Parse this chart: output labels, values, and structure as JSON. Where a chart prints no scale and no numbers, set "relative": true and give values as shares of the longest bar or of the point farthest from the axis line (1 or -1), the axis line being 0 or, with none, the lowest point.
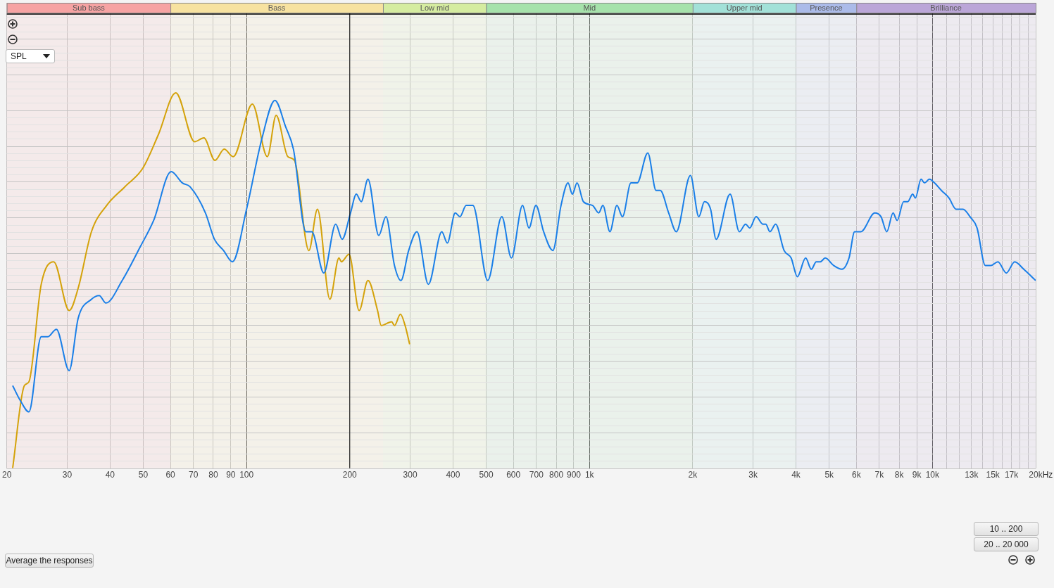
{
  "chart_data": {
    "type": "line",
    "relative": true,
    "log": "x",
    "grid": true,
    "legend": false,
    "marker": "none",
    "line_style": "solid",
    "xlim": [
      20,
      20000
    ],
    "xticks": [
      20,
      30,
      40,
      50,
      60,
      70,
      80,
      90,
      100,
      200,
      300,
      400,
      500,
      600,
      700,
      800,
      900,
      {
        "value": 1000,
        "label": "1k"
      },
      {
        "value": 2000,
        "label": "2k"
      },
      {
        "value": 3000,
        "label": "3k"
      },
      {
        "value": 4000,
        "label": "4k"
      },
      {
        "value": 5000,
        "label": "5k"
      },
      {
        "value": 6000,
        "label": "6k"
      },
      {
        "value": 7000,
        "label": "7k"
      },
      {
        "value": 8000,
        "label": "8k"
      },
      {
        "value": 9000,
        "label": "9k"
      },
      {
        "value": 10000,
        "label": "10k"
      },
      {
        "value": 11000,
        "label": null
      },
      {
        "value": 12000,
        "label": null
      },
      {
        "value": 13000,
        "label": "13k"
      },
      {
        "value": 14000,
        "label": null
      },
      {
        "value": 15000,
        "label": "15k"
      },
      {
        "value": 16000,
        "label": null
      },
      {
        "value": 17000,
        "label": "17k"
      },
      {
        "value": 18000,
        "label": null
      },
      {
        "value": 19000,
        "label": null
      },
      {
        "value": 20000,
        "label": "20k"
      }
    ],
    "xlabel": "Hz",
    "series": [
      {
        "color": "#1a7fe8",
        "x": [
          20.8,
          21.9,
          23.2,
          25.2,
          26.3,
          27.9,
          30.4,
          32.3,
          35.3,
          37.2,
          38.9,
          43.4,
          49,
          53.6,
          60.3,
          65,
          68.4,
          75.9,
          80.6,
          85.7,
          91,
          100,
          111,
          121,
          130,
          137,
          149,
          155,
          168,
          182,
          190,
          201,
          209,
          216,
          226,
          243,
          255,
          270,
          282,
          297,
          314,
          339,
          371,
          385,
          406,
          419,
          437,
          457,
          505,
          555,
          592,
          638,
          666,
          698,
          735,
          782,
          826,
          866,
          891,
          920,
          960,
          1021,
          1064,
          1094,
          1147,
          1202,
          1248,
          1321,
          1377,
          1479,
          1564,
          1608,
          1702,
          1791,
          1969,
          2084,
          2163,
          2255,
          2340,
          2570,
          2735,
          2852,
          2932,
          3061,
          3206,
          3266,
          3358,
          3490,
          3693,
          3872,
          4037,
          4268,
          4435,
          4583,
          4711,
          4868,
          5151,
          5446,
          5712,
          5929,
          6184,
          6790,
          7080,
          7360,
          7675,
          7891,
          8239,
          8473,
          8755,
          8918,
          9263,
          9486,
          9800,
          10140,
          10620,
          11170,
          11720,
          12280,
          12870,
          13490,
          14260,
          14820,
          15520,
          16420,
          17370,
          18460,
          20000
        ],
        "values": [
          0.22,
          0.18,
          0.15,
          0.35,
          0.35,
          0.37,
          0.26,
          0.4,
          0.45,
          0.46,
          0.44,
          0.5,
          0.59,
          0.66,
          0.79,
          0.76,
          0.75,
          0.68,
          0.61,
          0.58,
          0.55,
          0.69,
          0.88,
          0.98,
          0.91,
          0.85,
          0.63,
          0.63,
          0.52,
          0.65,
          0.61,
          0.68,
          0.73,
          0.71,
          0.77,
          0.62,
          0.67,
          0.54,
          0.5,
          0.58,
          0.63,
          0.49,
          0.63,
          0.6,
          0.68,
          0.67,
          0.7,
          0.7,
          0.5,
          0.67,
          0.56,
          0.7,
          0.64,
          0.7,
          0.63,
          0.58,
          0.7,
          0.76,
          0.73,
          0.76,
          0.71,
          0.7,
          0.68,
          0.7,
          0.63,
          0.7,
          0.67,
          0.76,
          0.76,
          0.84,
          0.74,
          0.74,
          0.68,
          0.63,
          0.78,
          0.67,
          0.71,
          0.69,
          0.61,
          0.73,
          0.63,
          0.65,
          0.64,
          0.67,
          0.65,
          0.65,
          0.63,
          0.65,
          0.58,
          0.56,
          0.51,
          0.56,
          0.53,
          0.55,
          0.55,
          0.56,
          0.54,
          0.53,
          0.56,
          0.63,
          0.63,
          0.68,
          0.67,
          0.63,
          0.68,
          0.66,
          0.71,
          0.71,
          0.73,
          0.72,
          0.77,
          0.76,
          0.77,
          0.76,
          0.74,
          0.72,
          0.69,
          0.69,
          0.67,
          0.64,
          0.54,
          0.54,
          0.55,
          0.52,
          0.55,
          0.53,
          0.5
        ]
      },
      {
        "color": "#d4a20a",
        "x": [
          20.8,
          22.5,
          23.2,
          25.2,
          27.4,
          30.4,
          32.3,
          35.3,
          39.1,
          44.2,
          49.9,
          55.4,
          62.2,
          70.6,
          75.1,
          80.9,
          86.1,
          91.4,
          104,
          115,
          122,
          132,
          138,
          152,
          161,
          175,
          186,
          189,
          199,
          213,
          226,
          241,
          247,
          265,
          270,
          281,
          290,
          299
        ],
        "values": [
          0,
          0.22,
          0.23,
          0.49,
          0.55,
          0.42,
          0.48,
          0.63,
          0.7,
          0.75,
          0.8,
          0.89,
          1,
          0.87,
          0.88,
          0.82,
          0.85,
          0.83,
          0.97,
          0.83,
          0.94,
          0.83,
          0.82,
          0.58,
          0.69,
          0.45,
          0.56,
          0.55,
          0.57,
          0.42,
          0.5,
          0.42,
          0.38,
          0.39,
          0.38,
          0.41,
          0.38,
          0.33
        ]
      }
    ],
    "ref_lines": [
      {
        "axis": "x",
        "value": 200,
        "color": "#000000"
      }
    ],
    "bands": [
      {
        "axis": "x",
        "from": 20,
        "to": 60,
        "label": "Sub bass",
        "color": "#f6a3a3"
      },
      {
        "axis": "x",
        "from": 60,
        "to": 250,
        "label": "Bass",
        "color": "#f7e2a0"
      },
      {
        "axis": "x",
        "from": 250,
        "to": 500,
        "label": "Low mid",
        "color": "#d5eca0"
      },
      {
        "axis": "x",
        "from": 500,
        "to": 2000,
        "label": "Mid",
        "color": "#a6e2ab"
      },
      {
        "axis": "x",
        "from": 2000,
        "to": 4000,
        "label": "Upper mid",
        "color": "#a2e1d8"
      },
      {
        "axis": "x",
        "from": 4000,
        "to": 6000,
        "label": "Presence",
        "color": "#abbbe9"
      },
      {
        "axis": "x",
        "from": 6000,
        "to": 20000,
        "label": "Brilliance",
        "color": "#bba6d8"
      }
    ],
    "annotations": [
      "SPL",
      "Average the responses",
      "10 .. 200",
      "20 .. 20 000"
    ]
  }
}
